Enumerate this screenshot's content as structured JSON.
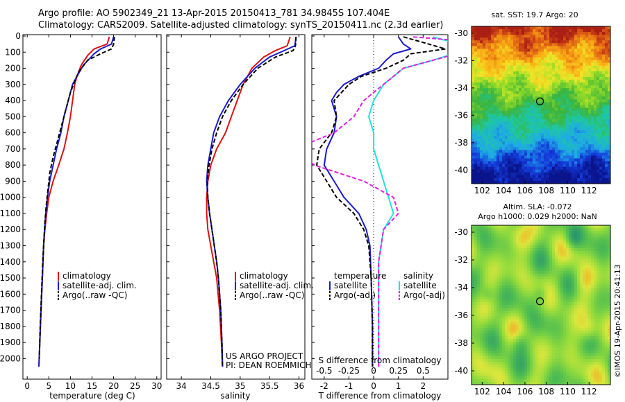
{
  "header": {
    "line1": "Argo profile: AO 5902349_21 13-Apr-2015 20150413_781 34.9845S 107.404E",
    "line2": "Climatology: CARS2009. Satellite-adjusted climatology: synTS_20150411.nc (2.3d earlier)"
  },
  "colors": {
    "climatology": "#e01010",
    "satellite": "#1a1ad0",
    "argo": "#000000",
    "salinity_satellite": "#22e0e0",
    "salinity_argo": "#e020e0"
  },
  "chart_data": [
    {
      "type": "line",
      "id": "temperature",
      "xlabel": "temperature (deg C)",
      "ylabel": "",
      "xlim": [
        -1,
        31
      ],
      "ylim": [
        2080,
        0
      ],
      "xticks": [
        0,
        5,
        10,
        15,
        20,
        25,
        30
      ],
      "yticks": [
        0,
        100,
        200,
        300,
        400,
        500,
        600,
        700,
        800,
        900,
        1000,
        1100,
        1200,
        1300,
        1400,
        1500,
        1600,
        1700,
        1800,
        1900,
        2000
      ],
      "legend": [
        "climatology",
        "satellite-adj. clim.",
        "Argo(..raw -QC)"
      ],
      "legend_position": "center",
      "series": [
        {
          "name": "climatology",
          "color": "#e01010",
          "style": "solid",
          "points": [
            [
              19.0,
              5
            ],
            [
              18.5,
              50
            ],
            [
              15.5,
              80
            ],
            [
              14.0,
              120
            ],
            [
              12.5,
              180
            ],
            [
              11.5,
              250
            ],
            [
              11.0,
              300
            ],
            [
              10.5,
              400
            ],
            [
              10.0,
              500
            ],
            [
              9.3,
              600
            ],
            [
              8.5,
              700
            ],
            [
              7.3,
              800
            ],
            [
              6.0,
              900
            ],
            [
              5.0,
              1000
            ],
            [
              4.5,
              1100
            ],
            [
              4.1,
              1200
            ],
            [
              3.8,
              1300
            ],
            [
              3.5,
              1500
            ],
            [
              3.2,
              1700
            ],
            [
              2.9,
              1900
            ],
            [
              2.7,
              2050
            ]
          ]
        },
        {
          "name": "satellite-adj. clim.",
          "color": "#1a1ad0",
          "style": "solid",
          "points": [
            [
              20.0,
              5
            ],
            [
              19.5,
              50
            ],
            [
              17.0,
              80
            ],
            [
              15.5,
              110
            ],
            [
              13.0,
              180
            ],
            [
              11.5,
              250
            ],
            [
              10.5,
              300
            ],
            [
              9.5,
              400
            ],
            [
              8.5,
              500
            ],
            [
              7.8,
              600
            ],
            [
              6.8,
              700
            ],
            [
              6.0,
              800
            ],
            [
              5.2,
              900
            ],
            [
              4.7,
              1000
            ],
            [
              4.3,
              1100
            ],
            [
              4.0,
              1200
            ],
            [
              3.8,
              1300
            ],
            [
              3.5,
              1500
            ],
            [
              3.2,
              1700
            ],
            [
              2.9,
              1900
            ],
            [
              2.7,
              2050
            ]
          ]
        },
        {
          "name": "Argo(..raw -QC)",
          "color": "#000000",
          "style": "dashed",
          "points": [
            [
              20.2,
              5
            ],
            [
              20.0,
              50
            ],
            [
              19.5,
              80
            ],
            [
              17.0,
              110
            ],
            [
              14.0,
              150
            ],
            [
              12.0,
              220
            ],
            [
              11.0,
              280
            ],
            [
              10.0,
              350
            ],
            [
              9.0,
              450
            ],
            [
              8.0,
              550
            ],
            [
              7.0,
              650
            ],
            [
              6.0,
              750
            ],
            [
              5.2,
              850
            ],
            [
              4.8,
              950
            ],
            [
              4.4,
              1050
            ],
            [
              4.1,
              1150
            ],
            [
              3.9,
              1250
            ],
            [
              3.6,
              1400
            ],
            [
              3.3,
              1600
            ],
            [
              3.0,
              1800
            ],
            [
              2.8,
              2000
            ]
          ]
        }
      ]
    },
    {
      "type": "line",
      "id": "salinity",
      "xlabel": "salinity",
      "xlim": [
        33.75,
        36.1
      ],
      "ylim": [
        2080,
        0
      ],
      "xticks": [
        34,
        34.5,
        35,
        35.5,
        36
      ],
      "legend": [
        "climatology",
        "satellite-adj. clim.",
        "Argo(..raw -QC)"
      ],
      "legend_position": "center-right",
      "annotation": [
        "US ARGO PROJECT",
        "PI: DEAN ROEMMICH"
      ],
      "series": [
        {
          "name": "climatology",
          "color": "#e01010",
          "style": "solid",
          "points": [
            [
              35.85,
              5
            ],
            [
              35.8,
              60
            ],
            [
              35.6,
              90
            ],
            [
              35.4,
              130
            ],
            [
              35.2,
              200
            ],
            [
              35.05,
              300
            ],
            [
              34.95,
              400
            ],
            [
              34.85,
              500
            ],
            [
              34.75,
              600
            ],
            [
              34.6,
              700
            ],
            [
              34.5,
              800
            ],
            [
              34.45,
              900
            ],
            [
              34.43,
              1000
            ],
            [
              34.43,
              1100
            ],
            [
              34.45,
              1200
            ],
            [
              34.5,
              1300
            ],
            [
              34.55,
              1400
            ],
            [
              34.6,
              1500
            ],
            [
              34.65,
              1700
            ],
            [
              34.68,
              1900
            ],
            [
              34.7,
              2050
            ]
          ]
        },
        {
          "name": "satellite-adj. clim.",
          "color": "#1a1ad0",
          "style": "solid",
          "points": [
            [
              35.95,
              5
            ],
            [
              35.93,
              60
            ],
            [
              35.75,
              90
            ],
            [
              35.5,
              130
            ],
            [
              35.25,
              200
            ],
            [
              35.0,
              300
            ],
            [
              34.8,
              400
            ],
            [
              34.65,
              500
            ],
            [
              34.55,
              600
            ],
            [
              34.5,
              700
            ],
            [
              34.45,
              800
            ],
            [
              34.43,
              900
            ],
            [
              34.45,
              1000
            ],
            [
              34.48,
              1100
            ],
            [
              34.52,
              1200
            ],
            [
              34.56,
              1300
            ],
            [
              34.6,
              1400
            ],
            [
              34.63,
              1500
            ],
            [
              34.67,
              1700
            ],
            [
              34.69,
              1900
            ],
            [
              34.7,
              2050
            ]
          ]
        },
        {
          "name": "Argo(..raw -QC)",
          "color": "#000000",
          "style": "dashed",
          "points": [
            [
              35.95,
              5
            ],
            [
              35.94,
              60
            ],
            [
              35.9,
              90
            ],
            [
              35.6,
              130
            ],
            [
              35.3,
              200
            ],
            [
              35.05,
              300
            ],
            [
              34.85,
              400
            ],
            [
              34.7,
              500
            ],
            [
              34.6,
              600
            ],
            [
              34.52,
              700
            ],
            [
              34.47,
              800
            ],
            [
              34.44,
              900
            ],
            [
              34.45,
              1000
            ],
            [
              34.48,
              1100
            ],
            [
              34.52,
              1200
            ],
            [
              34.56,
              1300
            ],
            [
              34.6,
              1400
            ],
            [
              34.63,
              1500
            ],
            [
              34.67,
              1700
            ],
            [
              34.69,
              1900
            ],
            [
              34.7,
              2050
            ]
          ]
        }
      ]
    },
    {
      "type": "line",
      "id": "difference",
      "xlabel": "T difference from climatology",
      "xlabel_top": "S difference from climatology",
      "xlim": [
        -2.5,
        3.0
      ],
      "ylim": [
        2080,
        0
      ],
      "xticks": [
        -2,
        -1,
        0,
        1,
        2
      ],
      "xticks_s": [
        -0.5,
        -0.25,
        0,
        0.25,
        0.5
      ],
      "legend_temperature_title": "temperature",
      "legend_salinity_title": "salinity",
      "legend": [
        "satellite",
        "Argo(-adj)",
        "satellite",
        "Argo(-adj)"
      ],
      "series": [
        {
          "name": "satellite",
          "group": "temperature",
          "color": "#1a1ad0",
          "style": "solid",
          "points": [
            [
              1.0,
              5
            ],
            [
              1.2,
              50
            ],
            [
              1.5,
              80
            ],
            [
              0.8,
              110
            ],
            [
              0.5,
              150
            ],
            [
              0.2,
              200
            ],
            [
              -0.6,
              250
            ],
            [
              -1.2,
              300
            ],
            [
              -1.5,
              350
            ],
            [
              -1.7,
              400
            ],
            [
              -1.5,
              500
            ],
            [
              -1.6,
              600
            ],
            [
              -1.9,
              700
            ],
            [
              -2.0,
              800
            ],
            [
              -1.6,
              900
            ],
            [
              -1.2,
              1000
            ],
            [
              -0.6,
              1100
            ],
            [
              -0.3,
              1200
            ],
            [
              -0.15,
              1300
            ],
            [
              -0.1,
              1500
            ],
            [
              -0.05,
              1800
            ],
            [
              -0.05,
              2050
            ]
          ]
        },
        {
          "name": "Argo(-adj)",
          "group": "temperature",
          "color": "#000000",
          "style": "dashed",
          "points": [
            [
              1.2,
              5
            ],
            [
              2.0,
              40
            ],
            [
              2.9,
              80
            ],
            [
              1.5,
              110
            ],
            [
              1.2,
              150
            ],
            [
              0.5,
              200
            ],
            [
              -0.5,
              250
            ],
            [
              -1.0,
              300
            ],
            [
              -1.3,
              350
            ],
            [
              -1.6,
              400
            ],
            [
              -1.5,
              500
            ],
            [
              -1.7,
              600
            ],
            [
              -2.2,
              700
            ],
            [
              -2.3,
              800
            ],
            [
              -1.9,
              900
            ],
            [
              -1.5,
              1000
            ],
            [
              -0.8,
              1100
            ],
            [
              -0.4,
              1200
            ],
            [
              -0.2,
              1300
            ],
            [
              -0.1,
              1500
            ],
            [
              -0.05,
              1800
            ],
            [
              -0.05,
              2050
            ]
          ]
        },
        {
          "name": "satellite",
          "group": "salinity",
          "color": "#22e0e0",
          "style": "solid",
          "points": [
            [
              0.6,
              5
            ],
            [
              0.8,
              40
            ],
            [
              1.0,
              80
            ],
            [
              0.8,
              110
            ],
            [
              0.6,
              150
            ],
            [
              0.3,
              200
            ],
            [
              0.1,
              300
            ],
            [
              0.0,
              400
            ],
            [
              -0.05,
              500
            ],
            [
              0.0,
              600
            ],
            [
              0.0,
              700
            ],
            [
              0.05,
              800
            ],
            [
              0.1,
              900
            ],
            [
              0.15,
              1000
            ],
            [
              0.2,
              1100
            ],
            [
              0.1,
              1200
            ],
            [
              0.05,
              1400
            ],
            [
              0.05,
              1700
            ],
            [
              0.05,
              2050
            ]
          ]
        },
        {
          "name": "Argo(-adj)",
          "group": "salinity",
          "color": "#e020e0",
          "style": "dashed",
          "points": [
            [
              0.4,
              5
            ],
            [
              0.9,
              30
            ],
            [
              1.1,
              60
            ],
            [
              0.9,
              100
            ],
            [
              0.6,
              150
            ],
            [
              0.3,
              200
            ],
            [
              0.1,
              300
            ],
            [
              -0.1,
              400
            ],
            [
              -0.2,
              500
            ],
            [
              -0.4,
              600
            ],
            [
              -0.8,
              700
            ],
            [
              -0.6,
              800
            ],
            [
              -0.1,
              900
            ],
            [
              0.2,
              1000
            ],
            [
              0.25,
              1100
            ],
            [
              0.1,
              1200
            ],
            [
              0.05,
              1400
            ],
            [
              0.05,
              1700
            ],
            [
              0.05,
              2050
            ]
          ]
        }
      ]
    },
    {
      "type": "heatmap",
      "id": "sst_map",
      "title": "sat. SST: 19.7 Argo: 20",
      "xlim": [
        101,
        114
      ],
      "ylim": [
        -41,
        -29.5
      ],
      "xticks": [
        102,
        104,
        106,
        108,
        110,
        112
      ],
      "yticks": [
        -30,
        -32,
        -34,
        -36,
        -38,
        -40
      ],
      "marker": {
        "lon": 107.404,
        "lat": -34.9845
      }
    },
    {
      "type": "heatmap",
      "id": "sla_map",
      "title": "Altim. SLA: -0.072",
      "subtitle": "Argo h1000: 0.029 h2000: NaN",
      "xlim": [
        101,
        114
      ],
      "ylim": [
        -41,
        -29.5
      ],
      "xticks": [
        102,
        104,
        106,
        108,
        110,
        112
      ],
      "yticks": [
        -30,
        -32,
        -34,
        -36,
        -38,
        -40
      ],
      "marker": {
        "lon": 107.404,
        "lat": -34.9845
      }
    }
  ],
  "credit": "©IMOS 19-Apr-2015 20:41:13"
}
